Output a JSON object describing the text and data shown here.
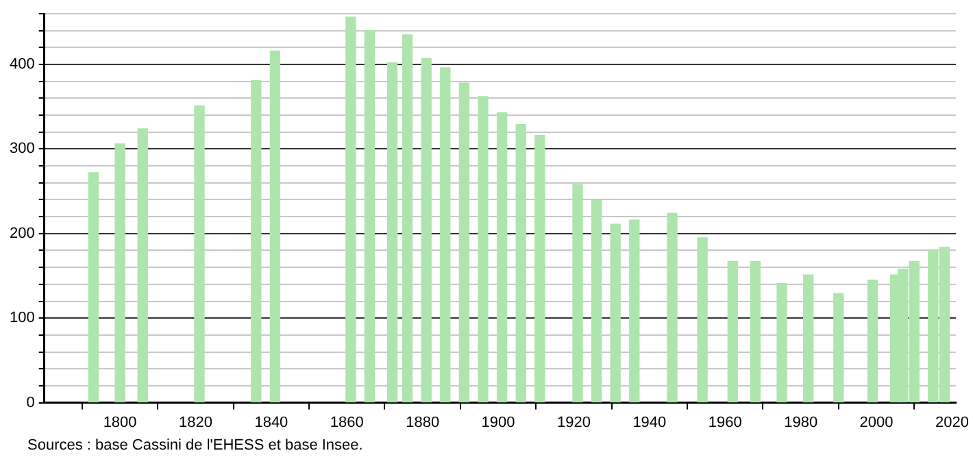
{
  "chart_data": {
    "type": "bar",
    "color": "#ade5ad",
    "x": [
      1793,
      1800,
      1806,
      1821,
      1836,
      1841,
      1861,
      1866,
      1872,
      1876,
      1881,
      1886,
      1891,
      1896,
      1901,
      1906,
      1911,
      1921,
      1926,
      1931,
      1936,
      1946,
      1954,
      1962,
      1968,
      1975,
      1982,
      1990,
      1999,
      2005,
      2007,
      2010,
      2015,
      2018
    ],
    "values": [
      272,
      306,
      324,
      351,
      381,
      416,
      456,
      440,
      402,
      435,
      407,
      396,
      378,
      362,
      343,
      329,
      316,
      258,
      239,
      211,
      216,
      224,
      195,
      167,
      167,
      141,
      151,
      129,
      145,
      151,
      158,
      167,
      181,
      184
    ],
    "xlim": [
      1780,
      2021
    ],
    "xticks": [
      1800,
      1820,
      1840,
      1860,
      1880,
      1900,
      1920,
      1940,
      1960,
      1980,
      2000,
      2020
    ],
    "ylim": [
      0,
      460
    ],
    "yticks": [
      0,
      {
        "value": 20,
        "label": null
      },
      {
        "value": 40,
        "label": null
      },
      {
        "value": 60,
        "label": null
      },
      {
        "value": 80,
        "label": null
      },
      100,
      {
        "value": 120,
        "label": null
      },
      {
        "value": 140,
        "label": null
      },
      {
        "value": 160,
        "label": null
      },
      {
        "value": 180,
        "label": null
      },
      200,
      {
        "value": 220,
        "label": null
      },
      {
        "value": 240,
        "label": null
      },
      {
        "value": 260,
        "label": null
      },
      {
        "value": 280,
        "label": null
      },
      300,
      {
        "value": 320,
        "label": null
      },
      {
        "value": 340,
        "label": null
      },
      {
        "value": 360,
        "label": null
      },
      {
        "value": 380,
        "label": null
      },
      400,
      {
        "value": 420,
        "label": null
      },
      {
        "value": 440,
        "label": null
      },
      {
        "value": 460,
        "label": null
      }
    ],
    "grid": "y",
    "annotations": [
      "Sources : base Cassini de l'EHESS et base Insee."
    ]
  }
}
